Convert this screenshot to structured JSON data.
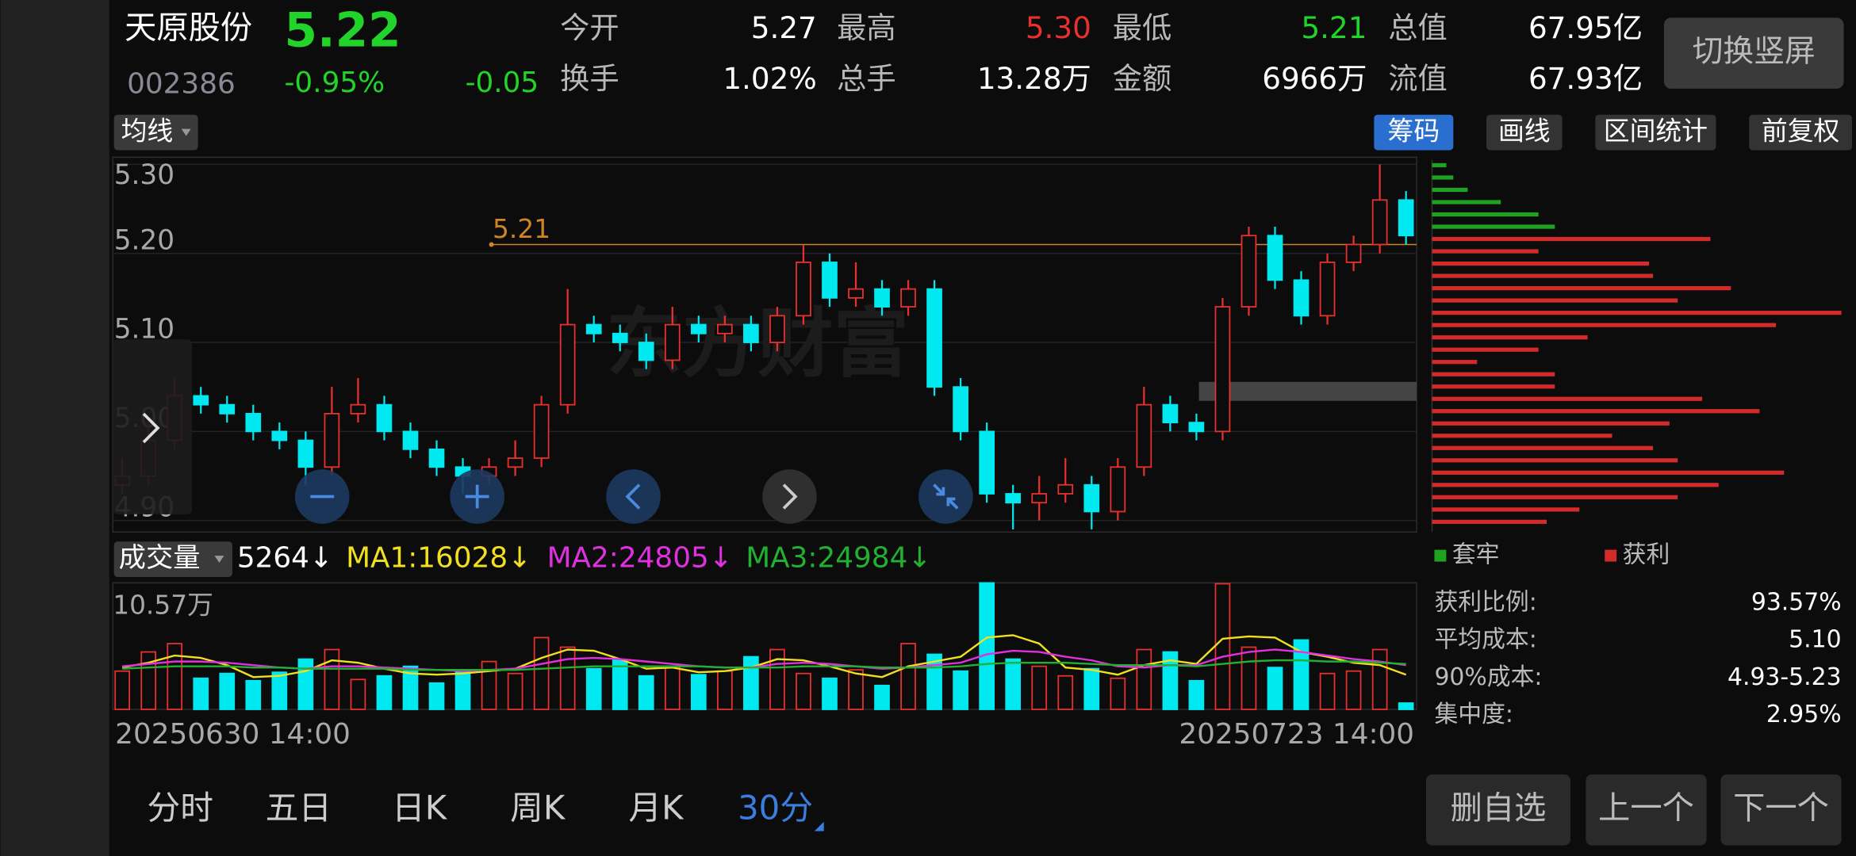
{
  "header": {
    "name": "天原股份",
    "price": "5.22",
    "code": "002386",
    "change_pct": "-0.95%",
    "change": "-0.05",
    "stats": [
      {
        "label": "今开",
        "value": "5.27"
      },
      {
        "label": "最高",
        "value": "5.30",
        "color": "#e8302e"
      },
      {
        "label": "最低",
        "value": "5.21",
        "color": "#22d42a"
      },
      {
        "label": "总值",
        "value": "67.95亿"
      },
      {
        "label": "换手",
        "value": "1.02%"
      },
      {
        "label": "总手",
        "value": "13.28万"
      },
      {
        "label": "金额",
        "value": "6966万"
      },
      {
        "label": "流值",
        "value": "67.93亿"
      }
    ],
    "orientation_button": "切换竖屏"
  },
  "toolbar": {
    "ma_menu": "均线",
    "buttons": [
      "筹码",
      "画线",
      "区间统计",
      "前复权"
    ],
    "active_button": 0
  },
  "watermark": "东方财富",
  "chart_data": [
    {
      "type": "candlestick",
      "up_color": "#e8302e",
      "down_color": "#00e8f0",
      "reference_line": 5.21,
      "reference_color": "#d08428",
      "ylim": [
        4.887,
        5.308
      ],
      "yticks": [
        {
          "value": 5.3,
          "label": "5.30"
        },
        {
          "value": 5.2,
          "label": "5.20"
        },
        {
          "value": 5.1,
          "label": "5.10"
        },
        {
          "value": 5.0,
          "label": "5.00"
        },
        {
          "value": 4.9,
          "label": "4.90"
        }
      ],
      "open": [
        4.94,
        4.95,
        4.99,
        5.04,
        5.03,
        5.02,
        5.0,
        4.99,
        4.96,
        5.02,
        5.03,
        5.0,
        4.98,
        4.96,
        4.95,
        4.96,
        4.97,
        5.03,
        5.12,
        5.11,
        5.1,
        5.08,
        5.12,
        5.11,
        5.12,
        5.1,
        5.13,
        5.19,
        5.15,
        5.16,
        5.14,
        5.16,
        5.05,
        5.0,
        4.93,
        4.92,
        4.93,
        4.94,
        4.91,
        4.96,
        5.03,
        5.01,
        5.0,
        5.14,
        5.22,
        5.17,
        5.13,
        5.19,
        5.21,
        5.26
      ],
      "high": [
        4.97,
        5.01,
        5.06,
        5.05,
        5.04,
        5.03,
        5.01,
        5.0,
        5.05,
        5.06,
        5.04,
        5.01,
        4.99,
        4.97,
        4.97,
        4.99,
        5.04,
        5.16,
        5.13,
        5.12,
        5.11,
        5.14,
        5.13,
        5.13,
        5.13,
        5.14,
        5.21,
        5.2,
        5.19,
        5.17,
        5.17,
        5.17,
        5.06,
        5.01,
        4.94,
        4.95,
        4.97,
        4.95,
        4.97,
        5.05,
        5.04,
        5.02,
        5.15,
        5.23,
        5.23,
        5.18,
        5.2,
        5.22,
        5.3,
        5.27
      ],
      "low": [
        4.93,
        4.94,
        4.98,
        5.02,
        5.01,
        4.99,
        4.98,
        4.94,
        4.95,
        5.01,
        4.99,
        4.97,
        4.95,
        4.93,
        4.94,
        4.95,
        4.96,
        5.02,
        5.1,
        5.09,
        5.07,
        5.07,
        5.1,
        5.1,
        5.09,
        5.09,
        5.12,
        5.14,
        5.14,
        5.13,
        5.13,
        5.04,
        4.99,
        4.92,
        4.89,
        4.9,
        4.92,
        4.89,
        4.9,
        4.95,
        5.0,
        4.99,
        4.99,
        5.13,
        5.16,
        5.12,
        5.12,
        5.18,
        5.2,
        5.21
      ],
      "close": [
        4.95,
        4.99,
        5.04,
        5.03,
        5.02,
        5.0,
        4.99,
        4.96,
        5.02,
        5.03,
        5.0,
        4.98,
        4.96,
        4.95,
        4.96,
        4.97,
        5.03,
        5.12,
        5.11,
        5.1,
        5.08,
        5.12,
        5.11,
        5.12,
        5.1,
        5.13,
        5.19,
        5.15,
        5.16,
        5.14,
        5.16,
        5.05,
        5.0,
        4.93,
        4.92,
        4.93,
        4.94,
        4.91,
        4.96,
        5.03,
        5.01,
        5.0,
        5.14,
        5.22,
        5.17,
        5.13,
        5.19,
        5.21,
        5.26,
        5.22
      ],
      "xlabels": [
        "20250630 14:00",
        "20250723 14:00"
      ]
    },
    {
      "type": "volume",
      "menu": "成交量",
      "current": "5264↓",
      "ylim": [
        0,
        10.57
      ],
      "yticks": [
        {
          "value": 10.57,
          "label": "10.57万"
        }
      ],
      "values": [
        3.2,
        4.8,
        5.5,
        2.6,
        3.0,
        2.4,
        3.1,
        4.2,
        5.0,
        2.5,
        2.8,
        3.6,
        2.2,
        3.3,
        4.0,
        3.0,
        6.0,
        5.2,
        3.4,
        4.1,
        2.8,
        3.6,
        2.9,
        3.2,
        4.4,
        5.0,
        3.0,
        2.6,
        3.3,
        2.0,
        5.5,
        4.6,
        3.2,
        10.57,
        4.2,
        3.6,
        2.8,
        3.4,
        2.6,
        5.0,
        4.8,
        2.4,
        10.5,
        5.2,
        3.5,
        5.8,
        3.0,
        3.2,
        5.0,
        0.53
      ],
      "series": [
        {
          "name": "MA1:16028↓",
          "color": "#f0e020",
          "values": [
            3.5,
            3.9,
            4.5,
            4.3,
            3.7,
            2.7,
            2.8,
            3.2,
            4.1,
            3.9,
            3.4,
            3.0,
            2.9,
            3.0,
            3.2,
            3.4,
            4.3,
            5.0,
            4.9,
            4.2,
            3.4,
            3.5,
            3.1,
            3.2,
            3.5,
            4.2,
            4.1,
            3.6,
            3.0,
            2.7,
            3.6,
            4.0,
            4.4,
            6.0,
            6.2,
            5.5,
            3.5,
            3.3,
            2.9,
            3.7,
            4.1,
            3.8,
            5.9,
            6.1,
            6.0,
            4.8,
            4.4,
            3.9,
            3.7,
            2.9
          ]
        },
        {
          "name": "MA2:24805↓",
          "color": "#e030e0",
          "values": [
            3.6,
            3.8,
            4.0,
            4.0,
            3.9,
            3.7,
            3.5,
            3.4,
            3.6,
            3.6,
            3.5,
            3.4,
            3.3,
            3.2,
            3.3,
            3.4,
            3.8,
            4.2,
            4.3,
            4.2,
            4.0,
            3.8,
            3.6,
            3.5,
            3.5,
            3.8,
            3.9,
            3.8,
            3.6,
            3.4,
            3.5,
            3.7,
            3.9,
            4.6,
            4.9,
            4.8,
            4.4,
            4.1,
            3.6,
            3.5,
            3.7,
            3.7,
            4.4,
            4.8,
            5.0,
            4.8,
            4.5,
            4.2,
            4.0,
            3.7
          ]
        },
        {
          "name": "MA3:24984↓",
          "color": "#22b030",
          "values": [
            3.4,
            3.5,
            3.6,
            3.6,
            3.6,
            3.5,
            3.5,
            3.4,
            3.4,
            3.4,
            3.4,
            3.3,
            3.3,
            3.3,
            3.3,
            3.3,
            3.4,
            3.5,
            3.6,
            3.6,
            3.6,
            3.6,
            3.6,
            3.5,
            3.5,
            3.5,
            3.6,
            3.6,
            3.6,
            3.5,
            3.5,
            3.5,
            3.6,
            3.8,
            3.9,
            3.9,
            3.9,
            3.8,
            3.7,
            3.7,
            3.7,
            3.6,
            3.8,
            4.0,
            4.1,
            4.1,
            4.0,
            4.0,
            3.9,
            3.8
          ]
        }
      ]
    },
    {
      "type": "chip",
      "xlim": [
        0,
        100
      ],
      "series": [
        {
          "name": "套牢",
          "color": "#1fa21f",
          "values": [
            3.5,
            5.2,
            8.7,
            16.8,
            26,
            30
          ]
        },
        {
          "name": "获利",
          "color": "#d32a2a",
          "values": [
            68,
            26,
            53,
            54,
            73,
            60,
            100,
            84,
            38,
            26,
            11,
            30,
            30,
            66,
            80,
            58,
            44,
            54,
            60,
            86,
            70,
            60,
            36,
            28
          ]
        }
      ],
      "stats": [
        {
          "label": "获利比例:",
          "value": "93.57%"
        },
        {
          "label": "平均成本:",
          "value": "5.10"
        },
        {
          "label": "90%成本:",
          "value": "4.93-5.23"
        },
        {
          "label": "集中度:",
          "value": "2.95%"
        }
      ]
    }
  ],
  "tabs": [
    "分时",
    "五日",
    "日K",
    "周K",
    "月K",
    "30分"
  ],
  "active_tab": 5,
  "actions": [
    "删自选",
    "上一个",
    "下一个"
  ]
}
